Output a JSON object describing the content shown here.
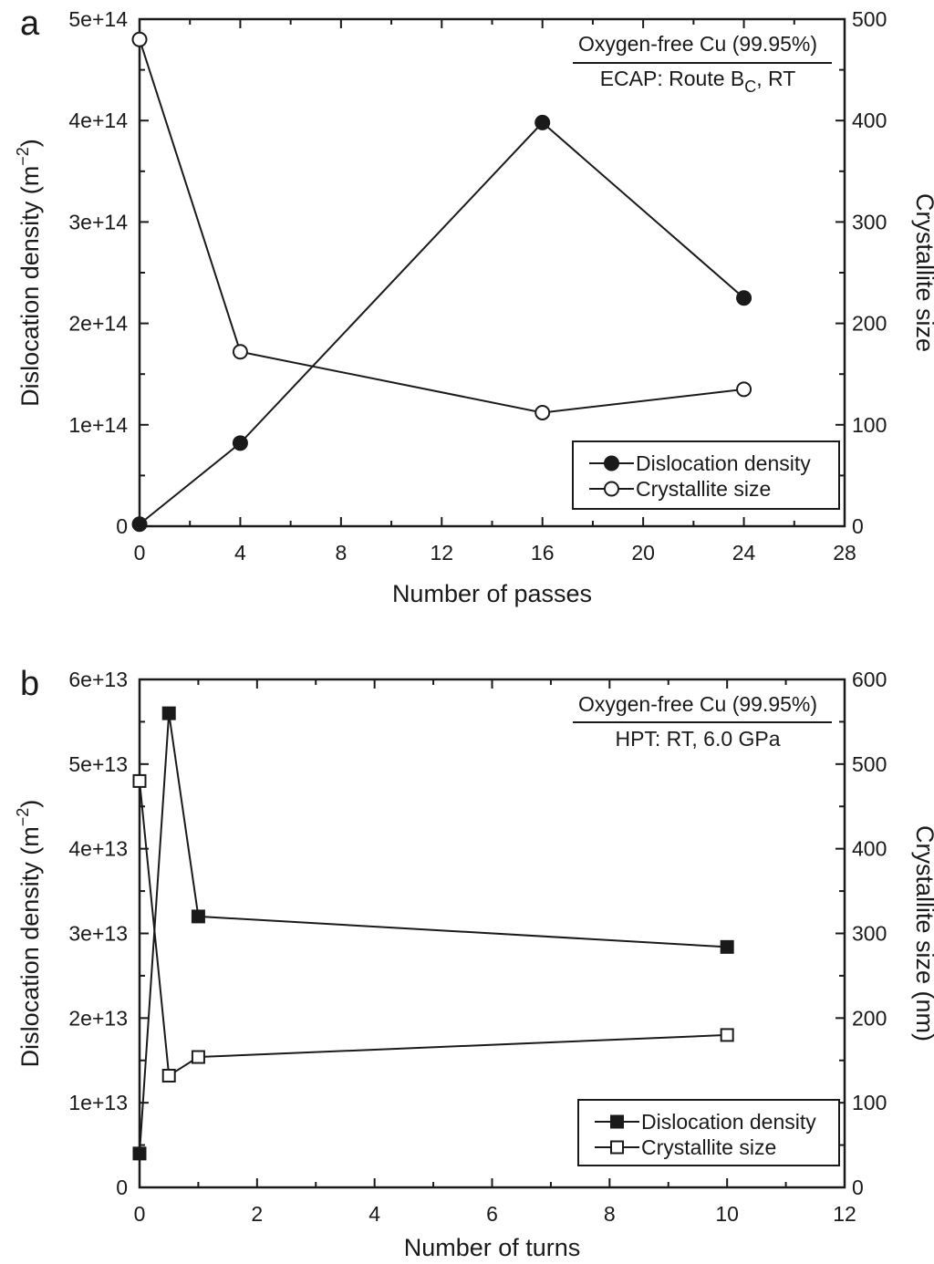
{
  "chart_data": [
    {
      "type": "line",
      "panel_label": "a",
      "xlabel": "Number of passes",
      "ylabel_left": "Dislocation density (m",
      "ylabel_left_sup": "−2",
      "ylabel_left_end": ")",
      "ylabel_right": "Crystallite size",
      "xlim": [
        0,
        28
      ],
      "ylim_left": [
        0,
        500000000000000.0
      ],
      "ylim_right": [
        0,
        500
      ],
      "x_ticks": [
        0,
        4,
        8,
        12,
        16,
        20,
        24,
        28
      ],
      "x_tick_labels": [
        "0",
        "4",
        "8",
        "12",
        "16",
        "20",
        "24",
        "28"
      ],
      "y_left_ticks": [
        0,
        100000000000000.0,
        200000000000000.0,
        300000000000000.0,
        400000000000000.0,
        500000000000000.0
      ],
      "y_left_tick_labels": [
        "0",
        "1e+14",
        "2e+14",
        "3e+14",
        "4e+14",
        "5e+14"
      ],
      "y_right_ticks": [
        0,
        100,
        200,
        300,
        400,
        500
      ],
      "y_right_tick_labels": [
        "0",
        "100",
        "200",
        "300",
        "400",
        "500"
      ],
      "annotation_line1": "Oxygen-free Cu (99.95%)",
      "annotation_line2_pre": "ECAP: Route B",
      "annotation_line2_sub": "C",
      "annotation_line2_post": ", RT",
      "legend_position": "lower-right",
      "series": [
        {
          "name": "Dislocation density",
          "axis": "left",
          "marker": "filled-circle",
          "x": [
            0,
            4,
            16,
            24
          ],
          "y": [
            2000000000000.0,
            82000000000000.0,
            398000000000000.0,
            225000000000000.0
          ]
        },
        {
          "name": "Crystallite size",
          "axis": "right",
          "marker": "open-circle",
          "x": [
            0,
            4,
            16,
            24
          ],
          "y": [
            480,
            172,
            112,
            135
          ]
        }
      ]
    },
    {
      "type": "line",
      "panel_label": "b",
      "xlabel": "Number of turns",
      "ylabel_left": "Dislocation density (m",
      "ylabel_left_sup": "−2",
      "ylabel_left_end": ")",
      "ylabel_right": "Crystallite size (nm)",
      "xlim": [
        0,
        12
      ],
      "ylim_left": [
        0,
        60000000000000.0
      ],
      "ylim_right": [
        0,
        600
      ],
      "x_ticks": [
        0,
        2,
        4,
        6,
        8,
        10,
        12
      ],
      "x_tick_labels": [
        "0",
        "2",
        "4",
        "6",
        "8",
        "10",
        "12"
      ],
      "y_left_ticks": [
        0,
        10000000000000.0,
        20000000000000.0,
        30000000000000.0,
        40000000000000.0,
        50000000000000.0,
        60000000000000.0
      ],
      "y_left_tick_labels": [
        "0",
        "1e+13",
        "2e+13",
        "3e+13",
        "4e+13",
        "5e+13",
        "6e+13"
      ],
      "y_right_ticks": [
        0,
        100,
        200,
        300,
        400,
        500,
        600
      ],
      "y_right_tick_labels": [
        "0",
        "100",
        "200",
        "300",
        "400",
        "500",
        "600"
      ],
      "annotation_line1": "Oxygen-free Cu (99.95%)",
      "annotation_line2_pre": "HPT: RT, 6.0 GPa",
      "annotation_line2_sub": "",
      "annotation_line2_post": "",
      "legend_position": "lower-right",
      "series": [
        {
          "name": "Dislocation density",
          "axis": "left",
          "marker": "filled-square",
          "x": [
            0,
            0.5,
            1,
            10
          ],
          "y": [
            4000000000000.0,
            56000000000000.0,
            32000000000000.0,
            28400000000000.0
          ]
        },
        {
          "name": "Crystallite size",
          "axis": "right",
          "marker": "open-square",
          "x": [
            0,
            0.5,
            1,
            10
          ],
          "y": [
            480,
            132,
            154,
            180
          ]
        }
      ]
    }
  ],
  "colors": {
    "ink": "#1a1a1a",
    "background": "#ffffff"
  }
}
